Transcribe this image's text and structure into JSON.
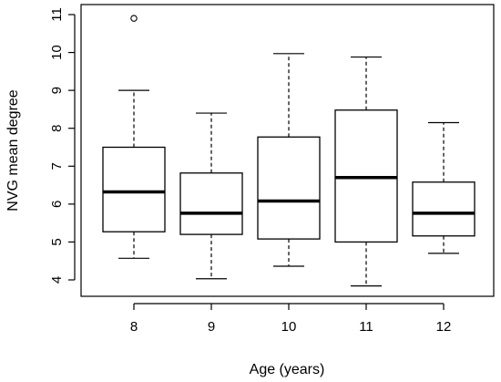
{
  "chart_data": {
    "type": "boxplot",
    "xlabel": "Age (years)",
    "ylabel": "NVG mean degree",
    "ylim": [
      3.8,
      11.2
    ],
    "y_ticks": [
      4,
      5,
      6,
      7,
      8,
      9,
      10,
      11
    ],
    "grid": false,
    "categories": [
      "8",
      "9",
      "10",
      "11",
      "12"
    ],
    "boxes": [
      {
        "category": "8",
        "whisker_low": 4.57,
        "q1": 5.27,
        "median": 6.32,
        "q3": 7.5,
        "whisker_high": 9.0,
        "outliers": [
          10.9
        ]
      },
      {
        "category": "9",
        "whisker_low": 4.03,
        "q1": 5.2,
        "median": 5.76,
        "q3": 6.82,
        "whisker_high": 8.4,
        "outliers": []
      },
      {
        "category": "10",
        "whisker_low": 4.36,
        "q1": 5.08,
        "median": 6.08,
        "q3": 7.77,
        "whisker_high": 9.97,
        "outliers": []
      },
      {
        "category": "11",
        "whisker_low": 3.84,
        "q1": 5.0,
        "median": 6.7,
        "q3": 8.48,
        "whisker_high": 9.88,
        "outliers": []
      },
      {
        "category": "12",
        "whisker_low": 4.7,
        "q1": 5.16,
        "median": 5.76,
        "q3": 6.58,
        "whisker_high": 8.15,
        "outliers": []
      }
    ]
  }
}
